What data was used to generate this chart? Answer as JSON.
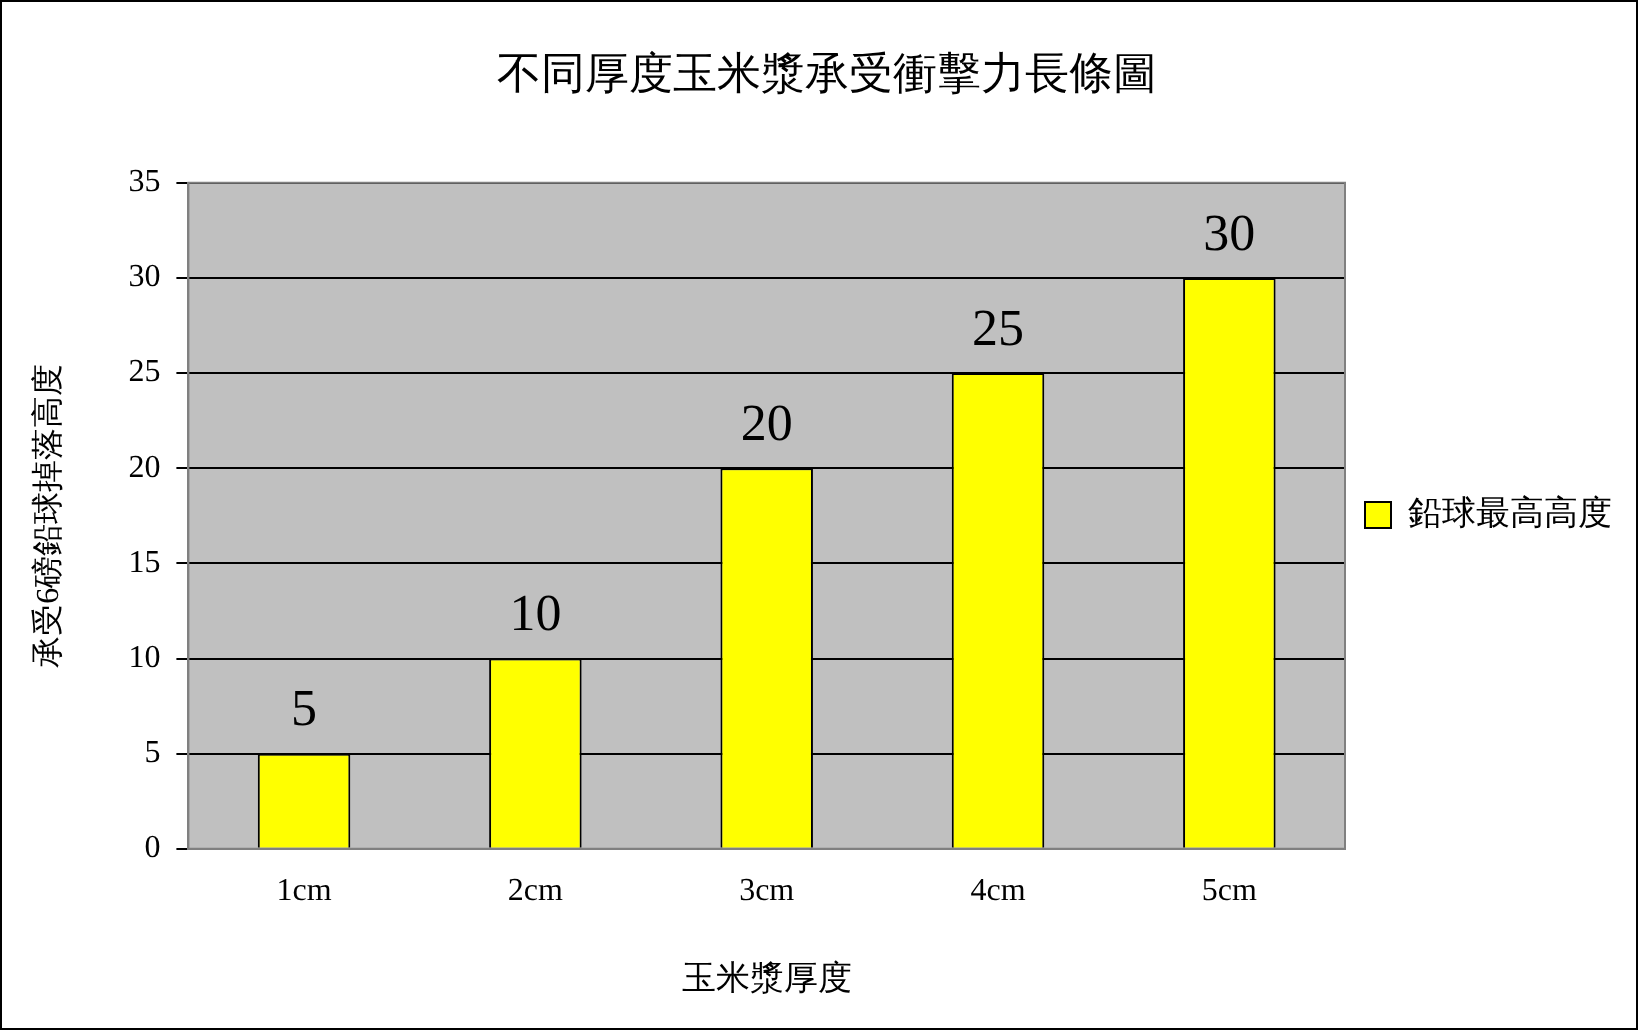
{
  "chart_data": {
    "type": "bar",
    "title": "不同厚度玉米漿承受衝擊力長條圖",
    "xlabel": "玉米漿厚度",
    "ylabel": "承受6磅鉛球掉落高度",
    "categories": [
      "1cm",
      "2cm",
      "3cm",
      "4cm",
      "5cm"
    ],
    "series": [
      {
        "name": "鉛球最高高度",
        "color": "#ffff00",
        "values": [
          5,
          10,
          20,
          25,
          30
        ]
      }
    ],
    "ylim": [
      0,
      35
    ],
    "yticks": [
      0,
      5,
      10,
      15,
      20,
      25,
      30,
      35
    ],
    "grid": "y",
    "legend": "right",
    "data_labels": true
  }
}
